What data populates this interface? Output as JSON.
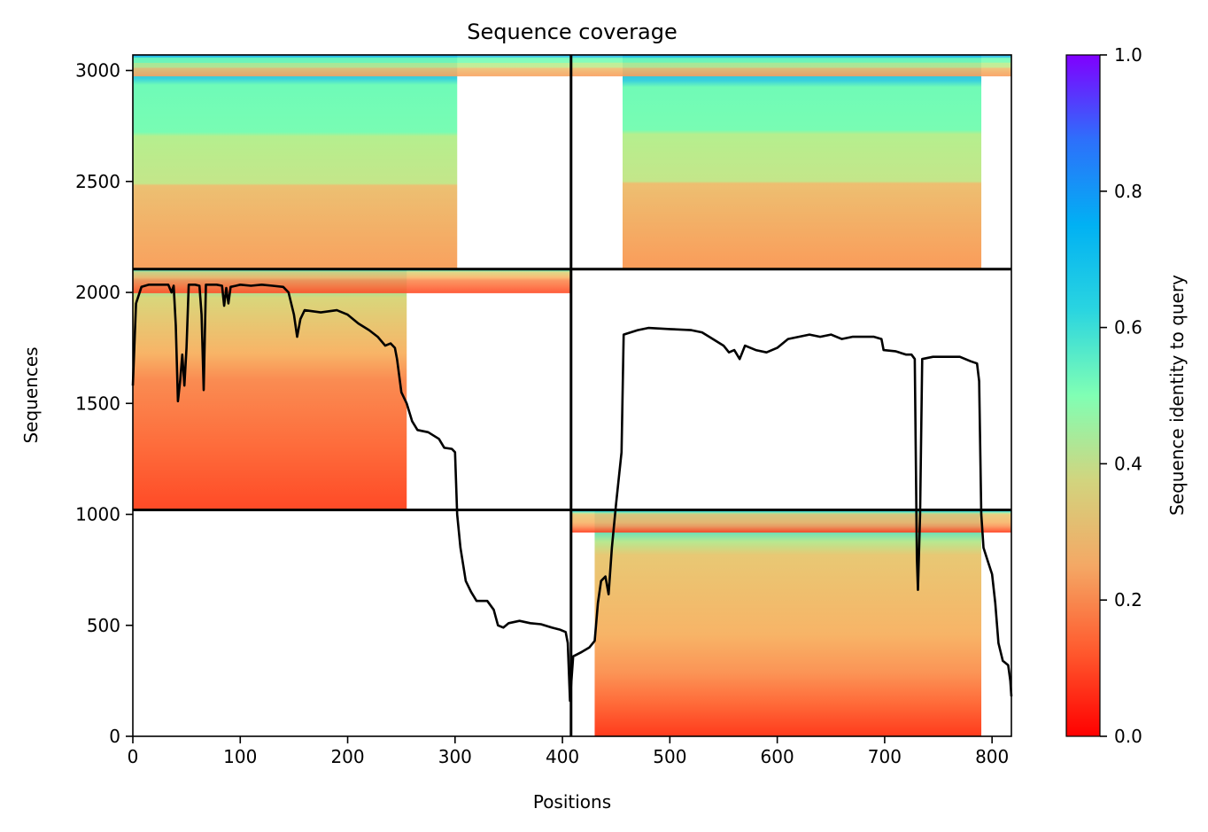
{
  "chart_data": {
    "type": "heatmap",
    "title": "Sequence coverage",
    "xlabel": "Positions",
    "ylabel": "Sequences",
    "xlim": [
      0,
      818
    ],
    "ylim": [
      0,
      3070
    ],
    "x_ticks": [
      0,
      100,
      200,
      300,
      400,
      500,
      600,
      700,
      800
    ],
    "y_ticks": [
      0,
      500,
      1000,
      1500,
      2000,
      2500,
      3000
    ],
    "colormap": "rainbow_r",
    "colorbar": {
      "label": "Sequence identity to query",
      "range": [
        0,
        1
      ],
      "ticks": [
        "0.0",
        "0.2",
        "0.4",
        "0.6",
        "0.8",
        "1.0"
      ]
    },
    "chain_boundaries": {
      "x": [
        408
      ],
      "y": [
        1020,
        2105
      ]
    },
    "blocks": [
      {
        "name": "chain1-pair",
        "x": [
          0,
          408
        ],
        "y": [
          2105,
          3070
        ],
        "coverage_end": 302
      },
      {
        "name": "chain2-pair",
        "x": [
          408,
          818
        ],
        "y": [
          2105,
          3070
        ],
        "coverage_start": 456,
        "coverage_end": 790
      },
      {
        "name": "chain1-unpaired",
        "x": [
          0,
          408
        ],
        "y": [
          1020,
          2105
        ],
        "coverage_end": 255
      },
      {
        "name": "chain2-unpaired",
        "x": [
          408,
          818
        ],
        "y": [
          0,
          1020
        ],
        "coverage_start": 430,
        "coverage_end": 790
      }
    ],
    "coverage_line": {
      "name": "coverage",
      "color": "#000000",
      "points": [
        [
          0,
          1580
        ],
        [
          3,
          1950
        ],
        [
          8,
          2025
        ],
        [
          15,
          2035
        ],
        [
          25,
          2035
        ],
        [
          33,
          2035
        ],
        [
          36,
          2000
        ],
        [
          38,
          2030
        ],
        [
          40,
          1850
        ],
        [
          42,
          1510
        ],
        [
          44,
          1600
        ],
        [
          46,
          1720
        ],
        [
          48,
          1580
        ],
        [
          50,
          1750
        ],
        [
          52,
          2035
        ],
        [
          58,
          2035
        ],
        [
          62,
          2030
        ],
        [
          64,
          1900
        ],
        [
          66,
          1560
        ],
        [
          68,
          2035
        ],
        [
          78,
          2035
        ],
        [
          83,
          2030
        ],
        [
          85,
          1940
        ],
        [
          87,
          2020
        ],
        [
          89,
          1950
        ],
        [
          91,
          2025
        ],
        [
          96,
          2030
        ],
        [
          100,
          2035
        ],
        [
          110,
          2030
        ],
        [
          120,
          2035
        ],
        [
          130,
          2030
        ],
        [
          140,
          2025
        ],
        [
          145,
          2000
        ],
        [
          150,
          1900
        ],
        [
          153,
          1800
        ],
        [
          156,
          1880
        ],
        [
          160,
          1920
        ],
        [
          175,
          1910
        ],
        [
          190,
          1920
        ],
        [
          200,
          1900
        ],
        [
          210,
          1860
        ],
        [
          220,
          1830
        ],
        [
          228,
          1800
        ],
        [
          235,
          1760
        ],
        [
          240,
          1770
        ],
        [
          244,
          1750
        ],
        [
          246,
          1700
        ],
        [
          250,
          1550
        ],
        [
          255,
          1500
        ],
        [
          260,
          1420
        ],
        [
          265,
          1380
        ],
        [
          275,
          1370
        ],
        [
          285,
          1340
        ],
        [
          290,
          1300
        ],
        [
          297,
          1295
        ],
        [
          300,
          1280
        ],
        [
          302,
          1000
        ],
        [
          305,
          850
        ],
        [
          310,
          700
        ],
        [
          315,
          650
        ],
        [
          320,
          610
        ],
        [
          330,
          610
        ],
        [
          336,
          570
        ],
        [
          340,
          500
        ],
        [
          345,
          490
        ],
        [
          350,
          510
        ],
        [
          360,
          520
        ],
        [
          370,
          510
        ],
        [
          380,
          505
        ],
        [
          390,
          490
        ],
        [
          398,
          480
        ],
        [
          403,
          470
        ],
        [
          405,
          420
        ],
        [
          407,
          160
        ],
        [
          410,
          360
        ],
        [
          418,
          380
        ],
        [
          425,
          400
        ],
        [
          430,
          430
        ],
        [
          433,
          600
        ],
        [
          436,
          700
        ],
        [
          440,
          720
        ],
        [
          443,
          640
        ],
        [
          446,
          850
        ],
        [
          450,
          1050
        ],
        [
          455,
          1280
        ],
        [
          457,
          1810
        ],
        [
          470,
          1830
        ],
        [
          480,
          1840
        ],
        [
          500,
          1835
        ],
        [
          520,
          1830
        ],
        [
          530,
          1820
        ],
        [
          540,
          1790
        ],
        [
          550,
          1760
        ],
        [
          555,
          1730
        ],
        [
          560,
          1740
        ],
        [
          565,
          1700
        ],
        [
          570,
          1760
        ],
        [
          580,
          1740
        ],
        [
          590,
          1730
        ],
        [
          600,
          1750
        ],
        [
          610,
          1790
        ],
        [
          620,
          1800
        ],
        [
          630,
          1810
        ],
        [
          640,
          1800
        ],
        [
          650,
          1810
        ],
        [
          660,
          1790
        ],
        [
          670,
          1800
        ],
        [
          680,
          1800
        ],
        [
          690,
          1800
        ],
        [
          697,
          1790
        ],
        [
          699,
          1740
        ],
        [
          710,
          1735
        ],
        [
          720,
          1720
        ],
        [
          725,
          1720
        ],
        [
          728,
          1700
        ],
        [
          730,
          800
        ],
        [
          731,
          660
        ],
        [
          733,
          1000
        ],
        [
          735,
          1700
        ],
        [
          745,
          1710
        ],
        [
          760,
          1710
        ],
        [
          770,
          1710
        ],
        [
          780,
          1690
        ],
        [
          786,
          1680
        ],
        [
          788,
          1600
        ],
        [
          790,
          1000
        ],
        [
          792,
          850
        ],
        [
          796,
          790
        ],
        [
          800,
          730
        ],
        [
          803,
          600
        ],
        [
          806,
          420
        ],
        [
          810,
          340
        ],
        [
          815,
          320
        ],
        [
          817,
          250
        ],
        [
          818,
          180
        ]
      ]
    }
  }
}
